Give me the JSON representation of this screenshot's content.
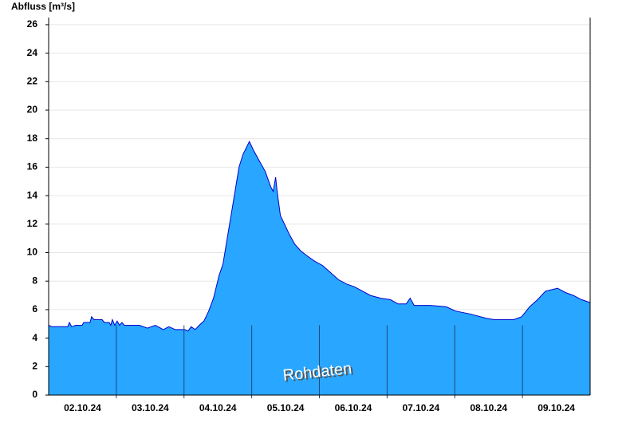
{
  "chart_data": {
    "type": "area",
    "y_label": "Abfluss [m³/s]",
    "annotation": "Rohdaten",
    "color": "#29a6ff",
    "line_color": "#0000c8",
    "x": [
      0,
      0.047,
      0.282,
      0.306,
      0.341,
      0.4,
      0.494,
      0.518,
      0.612,
      0.635,
      0.671,
      0.788,
      0.824,
      0.894,
      0.918,
      0.941,
      0.976,
      1.012,
      1.047,
      1.082,
      1.118,
      1.341,
      1.459,
      1.576,
      1.694,
      1.776,
      1.871,
      2.012,
      2.059,
      2.106,
      2.165,
      2.224,
      2.294,
      2.365,
      2.435,
      2.518,
      2.576,
      2.635,
      2.694,
      2.753,
      2.812,
      2.871,
      2.965,
      3.024,
      3.106,
      3.2,
      3.282,
      3.318,
      3.353,
      3.376,
      3.424,
      3.494,
      3.553,
      3.635,
      3.729,
      3.812,
      3.929,
      4.047,
      4.165,
      4.282,
      4.4,
      4.518,
      4.635,
      4.753,
      4.906,
      5.047,
      5.165,
      5.282,
      5.341,
      5.4,
      5.635,
      5.871,
      6.012,
      6.224,
      6.459,
      6.576,
      6.871,
      6.988,
      7.106,
      7.224,
      7.341,
      7.518,
      7.635,
      7.753,
      7.871,
      8
    ],
    "values": [
      4.9,
      4.8,
      4.8,
      5.1,
      4.8,
      4.9,
      4.9,
      5.1,
      5.1,
      5.5,
      5.3,
      5.3,
      5.1,
      5.1,
      4.9,
      5.3,
      4.9,
      5.2,
      4.9,
      5.1,
      4.9,
      4.9,
      4.7,
      4.9,
      4.6,
      4.8,
      4.6,
      4.6,
      4.5,
      4.8,
      4.6,
      4.9,
      5.2,
      5.9,
      6.8,
      8.4,
      9.2,
      10.9,
      12.6,
      14.3,
      16,
      16.9,
      17.8,
      17.2,
      16.5,
      15.7,
      14.6,
      14.3,
      15.3,
      14.3,
      12.6,
      11.9,
      11.3,
      10.6,
      10.1,
      9.8,
      9.4,
      9.1,
      8.6,
      8.1,
      7.8,
      7.6,
      7.3,
      7,
      6.8,
      6.7,
      6.4,
      6.4,
      6.8,
      6.3,
      6.3,
      6.2,
      5.9,
      5.7,
      5.4,
      5.3,
      5.3,
      5.5,
      6.2,
      6.7,
      7.3,
      7.5,
      7.2,
      7,
      6.7,
      6.5
    ],
    "xlim": [
      0,
      8
    ],
    "xticks": [
      {
        "value": 0.5,
        "label": "02.10.24"
      },
      {
        "value": 1.5,
        "label": "03.10.24"
      },
      {
        "value": 2.5,
        "label": "04.10.24"
      },
      {
        "value": 3.5,
        "label": "05.10.24"
      },
      {
        "value": 4.5,
        "label": "06.10.24"
      },
      {
        "value": 5.5,
        "label": "07.10.24"
      },
      {
        "value": 6.5,
        "label": "08.10.24"
      },
      {
        "value": 7.5,
        "label": "09.10.24"
      }
    ],
    "ylim": [
      0,
      26.5
    ],
    "yticks": [
      0,
      2,
      4,
      6,
      8,
      10,
      12,
      14,
      16,
      18,
      20,
      22,
      24,
      26
    ],
    "grid": true
  }
}
